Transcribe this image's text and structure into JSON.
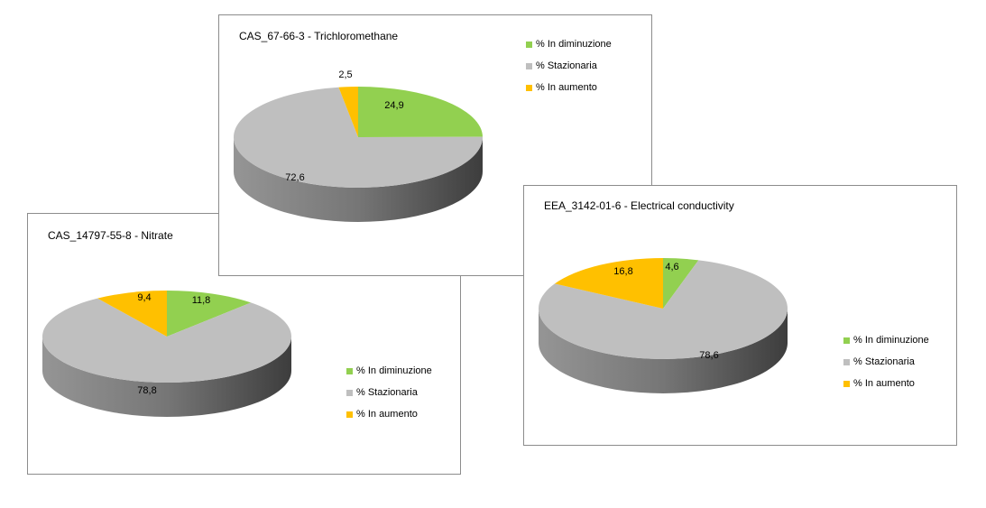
{
  "colors": {
    "decreasing": "#92d050",
    "stationary": "#bfbfbf",
    "increasing": "#ffc000",
    "panel_border": "#8c8c8c"
  },
  "chart_data": [
    {
      "type": "pie",
      "id": "nitrate",
      "title": "CAS_14797-55-8 - Nitrate",
      "categories": [
        "% In diminuzione",
        "% Stazionaria",
        "% In aumento"
      ],
      "values": [
        11.8,
        78.8,
        9.4
      ],
      "data_labels": [
        "11,8",
        "78,8",
        "9,4"
      ],
      "legend_position": "right"
    },
    {
      "type": "pie",
      "id": "tcm",
      "title": "CAS_67-66-3 - Trichloromethane",
      "categories": [
        "% In diminuzione",
        "% Stazionaria",
        "% In aumento"
      ],
      "values": [
        24.9,
        72.6,
        2.5
      ],
      "data_labels": [
        "24,9",
        "72,6",
        "2,5"
      ],
      "legend_position": "top-right"
    },
    {
      "type": "pie",
      "id": "ec",
      "title": "EEA_3142-01-6 - Electrical conductivity",
      "categories": [
        "% In diminuzione",
        "% Stazionaria",
        "% In aumento"
      ],
      "values": [
        4.6,
        78.6,
        16.8
      ],
      "data_labels": [
        "4,6",
        "78,6",
        "16,8"
      ],
      "legend_position": "right"
    }
  ]
}
